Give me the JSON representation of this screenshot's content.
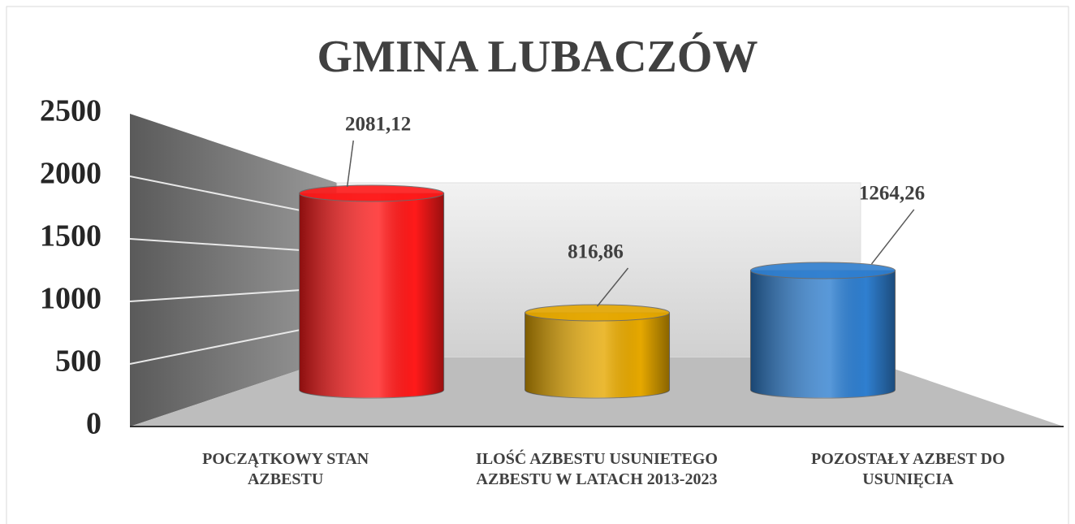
{
  "chart_data": {
    "type": "bar3d",
    "title": "GMINA LUBACZÓW",
    "categories": [
      "POCZĄTKOWY STAN AZBESTU",
      "ILOŚĆ AZBESTU USUNIETEGO AZBESTU W LATACH 2013-2023",
      "POZOSTAŁY AZBEST DO USUNIĘCIA"
    ],
    "values": [
      2081.12,
      816.86,
      1264.26
    ],
    "value_labels": [
      "2081,12",
      "816,86",
      "1264,26"
    ],
    "colors": [
      "#ff1a1a",
      "#e6a800",
      "#2f7fd0"
    ],
    "ylim": [
      0,
      2500
    ],
    "yticks": [
      0,
      500,
      1000,
      1500,
      2000,
      2500
    ],
    "grid": true
  }
}
